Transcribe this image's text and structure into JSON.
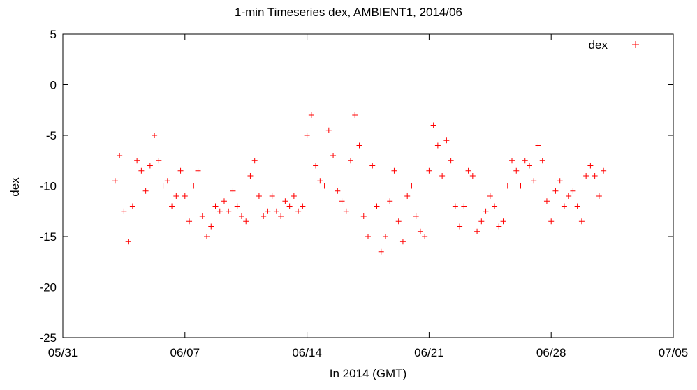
{
  "chart_data": {
    "type": "scatter",
    "title": "1-min Timeseries dex, AMBIENT1, 2014/06",
    "xlabel": "In 2014 (GMT)",
    "ylabel": "dex",
    "xlim": [
      "2014-05-31",
      "2014-07-05"
    ],
    "ylim": [
      -25,
      5
    ],
    "x_ticks": [
      "05/31",
      "06/07",
      "06/14",
      "06/21",
      "06/28",
      "07/05"
    ],
    "y_ticks": [
      5,
      0,
      -5,
      -10,
      -15,
      -20,
      -25
    ],
    "grid": false,
    "legend": "top-right",
    "marker": "+",
    "color": "#ff0000",
    "series": [
      {
        "name": "dex",
        "x": [
          "2014-06-03 00:00",
          "2014-06-03 06:00",
          "2014-06-03 12:00",
          "2014-06-03 18:00",
          "2014-06-04 00:00",
          "2014-06-04 06:00",
          "2014-06-04 12:00",
          "2014-06-04 18:00",
          "2014-06-05 00:00",
          "2014-06-05 06:00",
          "2014-06-05 12:00",
          "2014-06-05 18:00",
          "2014-06-06 00:00",
          "2014-06-06 06:00",
          "2014-06-06 12:00",
          "2014-06-06 18:00",
          "2014-06-07 00:00",
          "2014-06-07 06:00",
          "2014-06-07 12:00",
          "2014-06-07 18:00",
          "2014-06-08 00:00",
          "2014-06-08 06:00",
          "2014-06-08 12:00",
          "2014-06-08 18:00",
          "2014-06-09 00:00",
          "2014-06-09 06:00",
          "2014-06-09 12:00",
          "2014-06-09 18:00",
          "2014-06-10 00:00",
          "2014-06-10 06:00",
          "2014-06-10 12:00",
          "2014-06-10 18:00",
          "2014-06-11 00:00",
          "2014-06-11 06:00",
          "2014-06-11 12:00",
          "2014-06-11 18:00",
          "2014-06-12 00:00",
          "2014-06-12 06:00",
          "2014-06-12 12:00",
          "2014-06-12 18:00",
          "2014-06-13 00:00",
          "2014-06-13 06:00",
          "2014-06-13 12:00",
          "2014-06-13 18:00",
          "2014-06-14 00:00",
          "2014-06-14 06:00",
          "2014-06-14 12:00",
          "2014-06-14 18:00",
          "2014-06-15 00:00",
          "2014-06-15 06:00",
          "2014-06-15 12:00",
          "2014-06-15 18:00",
          "2014-06-16 00:00",
          "2014-06-16 06:00",
          "2014-06-16 12:00",
          "2014-06-16 18:00",
          "2014-06-17 00:00",
          "2014-06-17 06:00",
          "2014-06-17 12:00",
          "2014-06-17 18:00",
          "2014-06-18 00:00",
          "2014-06-18 06:00",
          "2014-06-18 12:00",
          "2014-06-18 18:00",
          "2014-06-19 00:00",
          "2014-06-19 06:00",
          "2014-06-19 12:00",
          "2014-06-19 18:00",
          "2014-06-20 00:00",
          "2014-06-20 06:00",
          "2014-06-20 12:00",
          "2014-06-20 18:00",
          "2014-06-21 00:00",
          "2014-06-21 06:00",
          "2014-06-21 12:00",
          "2014-06-21 18:00",
          "2014-06-22 00:00",
          "2014-06-22 06:00",
          "2014-06-22 12:00",
          "2014-06-22 18:00",
          "2014-06-23 00:00",
          "2014-06-23 06:00",
          "2014-06-23 12:00",
          "2014-06-23 18:00",
          "2014-06-24 00:00",
          "2014-06-24 06:00",
          "2014-06-24 12:00",
          "2014-06-24 18:00",
          "2014-06-25 00:00",
          "2014-06-25 06:00",
          "2014-06-25 12:00",
          "2014-06-25 18:00",
          "2014-06-26 00:00",
          "2014-06-26 06:00",
          "2014-06-26 12:00",
          "2014-06-26 18:00",
          "2014-06-27 00:00",
          "2014-06-27 06:00",
          "2014-06-27 12:00",
          "2014-06-27 18:00",
          "2014-06-28 00:00",
          "2014-06-28 06:00",
          "2014-06-28 12:00",
          "2014-06-28 18:00",
          "2014-06-29 00:00",
          "2014-06-29 06:00",
          "2014-06-29 12:00",
          "2014-06-29 18:00",
          "2014-06-30 00:00",
          "2014-06-30 06:00",
          "2014-06-30 12:00",
          "2014-06-30 18:00",
          "2014-07-01 00:00"
        ],
        "y": [
          -9.5,
          -7.0,
          -12.5,
          -15.5,
          -12.0,
          -7.5,
          -8.5,
          -10.5,
          -8.0,
          -5.0,
          -7.5,
          -10.0,
          -9.5,
          -12.0,
          -11.0,
          -8.5,
          -11.0,
          -13.5,
          -10.0,
          -8.5,
          -13.0,
          -15.0,
          -14.0,
          -12.0,
          -12.5,
          -11.5,
          -12.5,
          -10.5,
          -12.0,
          -13.0,
          -13.5,
          -9.0,
          -7.5,
          -11.0,
          -13.0,
          -12.5,
          -11.0,
          -12.5,
          -13.0,
          -11.5,
          -12.0,
          -11.0,
          -12.5,
          -12.0,
          -5.0,
          -3.0,
          -8.0,
          -9.5,
          -10.0,
          -4.5,
          -7.0,
          -10.5,
          -11.5,
          -12.5,
          -7.5,
          -3.0,
          -6.0,
          -13.0,
          -15.0,
          -8.0,
          -12.0,
          -16.5,
          -15.0,
          -11.5,
          -8.5,
          -13.5,
          -15.5,
          -11.0,
          -10.0,
          -13.0,
          -14.5,
          -15.0,
          -8.5,
          -4.0,
          -6.0,
          -9.0,
          -5.5,
          -7.5,
          -12.0,
          -14.0,
          -12.0,
          -8.5,
          -9.0,
          -14.5,
          -13.5,
          -12.5,
          -11.0,
          -12.0,
          -14.0,
          -13.5,
          -10.0,
          -7.5,
          -8.5,
          -10.0,
          -7.5,
          -8.0,
          -9.5,
          -6.0,
          -7.5,
          -11.5,
          -13.5,
          -10.5,
          -9.5,
          -12.0,
          -11.0,
          -10.5,
          -12.0,
          -13.5,
          -9.0,
          -8.0,
          -9.0,
          -11.0,
          -8.5
        ]
      }
    ],
    "annotations": []
  }
}
